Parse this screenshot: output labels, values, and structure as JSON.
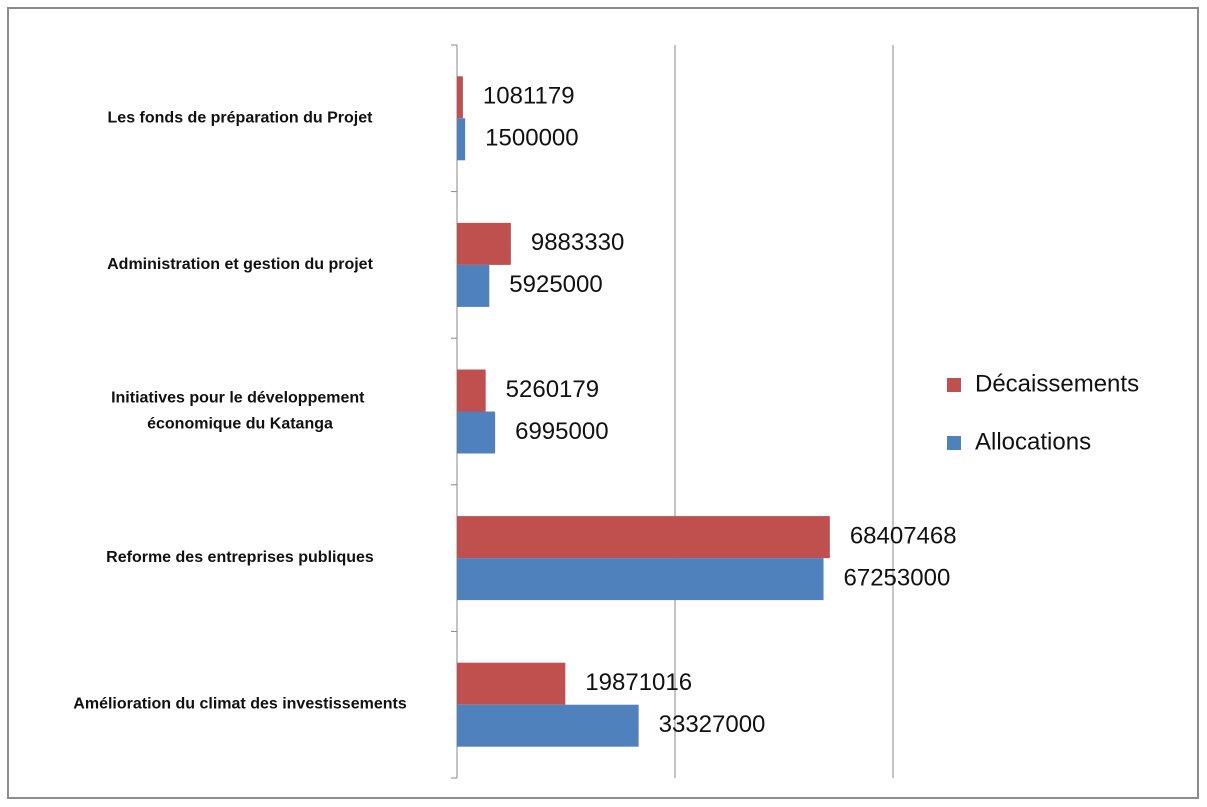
{
  "chart_data": {
    "type": "barh",
    "categories": [
      "Les fonds de préparation du Projet",
      "Administration et gestion du projet",
      "Initiatives pour le développement économique du Katanga",
      "Reforme des entreprises publiques",
      "Amélioration du climat des investissements"
    ],
    "series": [
      {
        "name": "Décaissements",
        "color": "#c0504d",
        "values": [
          1081179,
          9883330,
          5260179,
          68407468,
          19871016
        ]
      },
      {
        "name": "Allocations",
        "color": "#4f81bd",
        "values": [
          1500000,
          5925000,
          6995000,
          67253000,
          33327000
        ]
      }
    ],
    "xlim": [
      0,
      80000000
    ],
    "xticks": [
      0,
      40000000,
      80000000
    ],
    "grid": true,
    "legend": "right"
  }
}
